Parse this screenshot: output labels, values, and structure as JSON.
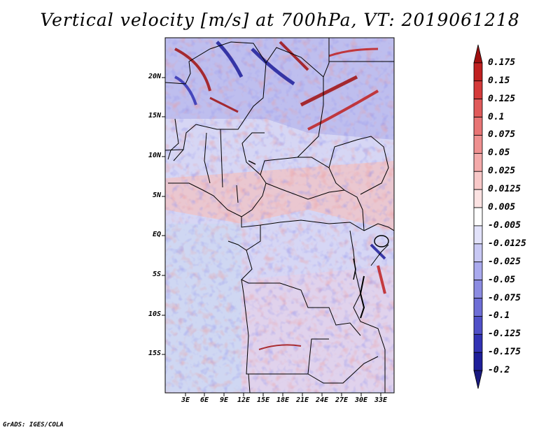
{
  "title": "Vertical velocity [m/s] at 700hPa, VT: 2019061218",
  "footer": "GrADS: IGES/COLA",
  "latitude_labels": [
    "20N",
    "15N",
    "10N",
    "5N",
    "EQ",
    "5S",
    "10S",
    "15S"
  ],
  "longitude_labels": [
    "3E",
    "6E",
    "9E",
    "12E",
    "15E",
    "18E",
    "21E",
    "24E",
    "27E",
    "30E",
    "33E"
  ],
  "colorbar": {
    "levels": [
      "0.175",
      "0.15",
      "0.125",
      "0.1",
      "0.075",
      "0.05",
      "0.025",
      "0.0125",
      "0.005",
      "-0.005",
      "-0.0125",
      "-0.025",
      "-0.05",
      "-0.075",
      "-0.1",
      "-0.125",
      "-0.175",
      "-0.2"
    ],
    "colors": [
      "#a01010",
      "#c02020",
      "#d53a3a",
      "#e05a5a",
      "#e87575",
      "#ef9090",
      "#f4aaaa",
      "#f8c8c8",
      "#fbe2e2",
      "#ffffff",
      "#e2e2fa",
      "#c8c8f4",
      "#aaaaee",
      "#8c8ce2",
      "#6e6ed6",
      "#5050c8",
      "#3232b4",
      "#1e1e9a",
      "#1a1a80"
    ]
  }
}
